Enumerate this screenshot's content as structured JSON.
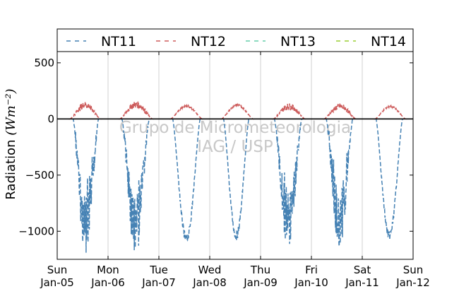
{
  "chart_data": {
    "type": "line",
    "ylabel": "Radiation",
    "ylabel_unit": "(Wm⁻²)",
    "ylim": [
      -1250,
      600
    ],
    "yticks": [
      {
        "value": 500,
        "label": "500"
      },
      {
        "value": 0,
        "label": "0"
      },
      {
        "value": -500,
        "label": "−500"
      },
      {
        "value": -1000,
        "label": "−1000"
      }
    ],
    "xlim": [
      "2014-01-05",
      "2014-01-12"
    ],
    "xticks": [
      {
        "day": "Sun",
        "date": "Jan-05"
      },
      {
        "day": "Mon",
        "date": "Jan-06"
      },
      {
        "day": "Tue",
        "date": "Jan-07"
      },
      {
        "day": "Wed",
        "date": "Jan-08"
      },
      {
        "day": "Thu",
        "date": "Jan-09"
      },
      {
        "day": "Fri",
        "date": "Jan-10"
      },
      {
        "day": "Sat",
        "date": "Jan-11"
      },
      {
        "day": "Sun",
        "date": "Jan-12"
      }
    ],
    "legend_position": "top",
    "grid": "vertical",
    "series": [
      {
        "name": "NT11",
        "color": "#4682b4",
        "daily": [
          {
            "date": "Jan-05",
            "start": 7.5,
            "end": 19.5,
            "min": -1250
          },
          {
            "date": "Jan-06",
            "start": 6.5,
            "end": 19.5,
            "min": -1250
          },
          {
            "date": "Jan-07",
            "start": 6.5,
            "end": 19.5,
            "min": -1110
          },
          {
            "date": "Jan-08",
            "start": 6.5,
            "end": 18.5,
            "min": -1080
          },
          {
            "date": "Jan-09",
            "start": 6.5,
            "end": 19.5,
            "min": -1180
          },
          {
            "date": "Jan-10",
            "start": 7.0,
            "end": 19.5,
            "min": -1170
          },
          {
            "date": "Jan-11",
            "start": 6.5,
            "end": 19.0,
            "min": -1080
          }
        ]
      },
      {
        "name": "NT12",
        "color": "#cd5c5c",
        "daily": [
          {
            "date": "Jan-05",
            "start": 6.0,
            "end": 20.5,
            "max": 155
          },
          {
            "date": "Jan-06",
            "start": 5.5,
            "end": 21.0,
            "max": 160
          },
          {
            "date": "Jan-07",
            "start": 5.5,
            "end": 20.5,
            "max": 125
          },
          {
            "date": "Jan-08",
            "start": 5.5,
            "end": 20.5,
            "max": 135
          },
          {
            "date": "Jan-09",
            "start": 6.0,
            "end": 21.0,
            "max": 140
          },
          {
            "date": "Jan-10",
            "start": 6.0,
            "end": 21.0,
            "max": 140
          },
          {
            "date": "Jan-11",
            "start": 6.0,
            "end": 20.5,
            "max": 120
          }
        ]
      },
      {
        "name": "NT13",
        "color": "#66cdaa",
        "daily": []
      },
      {
        "name": "NT14",
        "color": "#9acd32",
        "daily": []
      }
    ],
    "watermark": [
      "Grupo de Micrometeorologia",
      "IAG / USP"
    ]
  }
}
